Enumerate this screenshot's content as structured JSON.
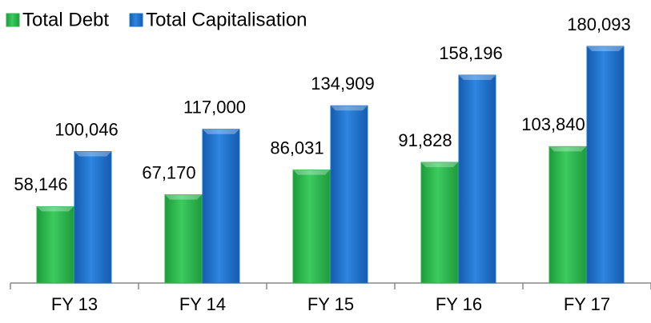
{
  "chart_data": {
    "type": "bar",
    "categories": [
      "FY 13",
      "FY 14",
      "FY 15",
      "FY 16",
      "FY 17"
    ],
    "series": [
      {
        "name": "Total Debt",
        "color": "#2cb34c",
        "values": [
          58146,
          67170,
          86031,
          91828,
          103840
        ],
        "value_labels": [
          "58,146",
          "67,170",
          "86,031",
          "91,828",
          "103,840"
        ]
      },
      {
        "name": "Total Capitalisation",
        "color": "#1f6fc8",
        "values": [
          100046,
          117000,
          134909,
          158196,
          180093
        ],
        "value_labels": [
          "100,046",
          "117,000",
          "134,909",
          "158,196",
          "180,093"
        ]
      }
    ],
    "legend": "top-left"
  }
}
